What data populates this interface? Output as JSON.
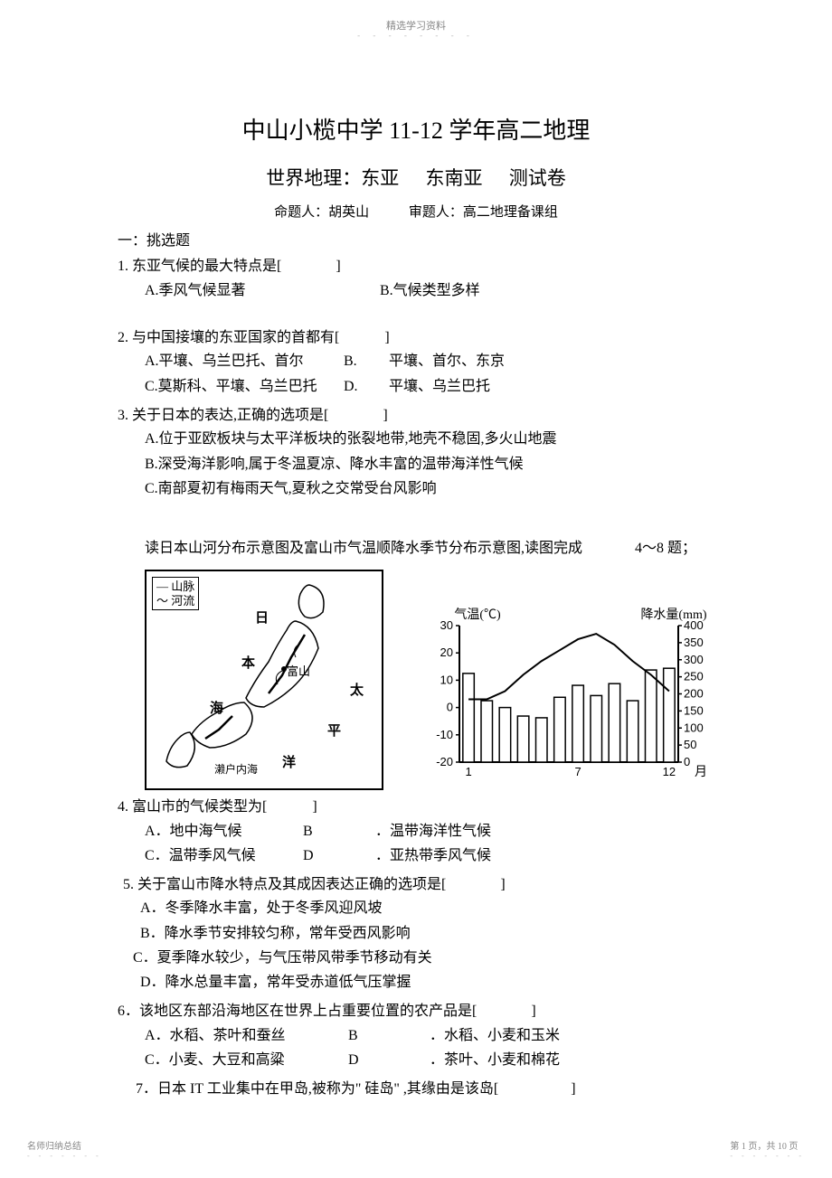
{
  "header": {
    "small_text": "精选学习资料",
    "dots": "- - - - - - - -"
  },
  "title": "中山小榄中学 11-12 学年高二地理",
  "subtitle": {
    "part1": "世界地理：东亚",
    "part2": "东南亚",
    "part3": "测试卷"
  },
  "authors": {
    "left": "命题人：胡英山",
    "right": "审题人：高二地理备课组"
  },
  "section1": "一：挑选题",
  "q1": {
    "text": "1. 东亚气候的最大特点是[",
    "close": "]",
    "optA": "A.季风气候显著",
    "optB": "B.气候类型多样"
  },
  "q2": {
    "text": "2. 与中国接壤的东亚国家的首都有[",
    "close": "]",
    "optA": "A.平壤、乌兰巴托、首尔",
    "optB_label": "B.",
    "optB": "平壤、首尔、东京",
    "optC": "C.莫斯科、平壤、乌兰巴托",
    "optD_label": "D.",
    "optD": "平壤、乌兰巴托"
  },
  "q3": {
    "text": "3. 关于日本的表达,正确的选项是[",
    "close": "]",
    "optA": "A.位于亚欧板块与太平洋板块的张裂地带,地壳不稳固,多火山地震",
    "optB": "B.深受海洋影响,属于冬温夏凉、降水丰富的温带海洋性气候",
    "optC": "C.南部夏初有梅雨天气,夏秋之交常受台风影响"
  },
  "intro48": {
    "text": "读日本山河分布示意图及富山市气温顺降水季节分布示意图,读图完成",
    "suffix": "4～8 题；"
  },
  "map": {
    "legend_line1": "— 山脉",
    "legend_line2": "～ 河流",
    "labels": {
      "ri": "日",
      "ben": "本",
      "fushan": "富山",
      "hai": "海",
      "tai": "太",
      "ping": "平",
      "yang": "洋",
      "seto": "濑户内海"
    }
  },
  "chart": {
    "left_axis_title": "气温(℃)",
    "right_axis_title": "降水量(mm)",
    "x_label": "月",
    "x_ticks": [
      "1",
      "7",
      "12"
    ],
    "left_ticks": [
      -20,
      -10,
      0,
      10,
      20,
      30
    ],
    "right_ticks": [
      0,
      50,
      100,
      150,
      200,
      250,
      300,
      350,
      400
    ],
    "precip": [
      260,
      180,
      160,
      135,
      130,
      190,
      225,
      195,
      230,
      180,
      270,
      275
    ],
    "temp": [
      3,
      3,
      6,
      12,
      17,
      21,
      25,
      27,
      23,
      17,
      12,
      6
    ],
    "temp_range": [
      -20,
      30
    ],
    "precip_range": [
      0,
      400
    ],
    "bar_color": "#ffffff",
    "bar_stroke": "#000000",
    "line_color": "#000000",
    "axis_color": "#000000",
    "font_size": 13
  },
  "q4": {
    "text": "4. 富山市的气候类型为[",
    "close": "]",
    "optA": "A．地中海气候",
    "optB_label": "B",
    "optB": "．温带海洋性气候",
    "optC": "C．温带季风气候",
    "optD_label": "D",
    "optD": "．亚热带季风气候"
  },
  "q5": {
    "text": "5. 关于富山市降水特点及其成因表达正确的选项是[",
    "close": "]",
    "optA": "A．冬季降水丰富，处于冬季风迎风坡",
    "optB": "B．降水季节安排较匀称，常年受西风影响",
    "optC": "C．夏季降水较少，与气压带风带季节移动有关",
    "optD": "D．降水总量丰富，常年受赤道低气压掌握"
  },
  "q6": {
    "text": "6．该地区东部沿海地区在世界上占重要位置的农产品是[",
    "close": "]",
    "optA": "A．水稻、茶叶和蚕丝",
    "optB_label": "B",
    "optB": "．水稻、小麦和玉米",
    "optC": "C．小麦、大豆和高粱",
    "optD_label": "D",
    "optD": "．茶叶、小麦和棉花"
  },
  "q7": {
    "text": "7．日本 IT 工业集中在甲岛,被称为\" 硅岛\" ,其缘由是该岛[",
    "close": "]"
  },
  "footer": {
    "left": "名师归纳总结",
    "right": "第 1 页，共 10 页",
    "dots": "- - - - - - -"
  }
}
